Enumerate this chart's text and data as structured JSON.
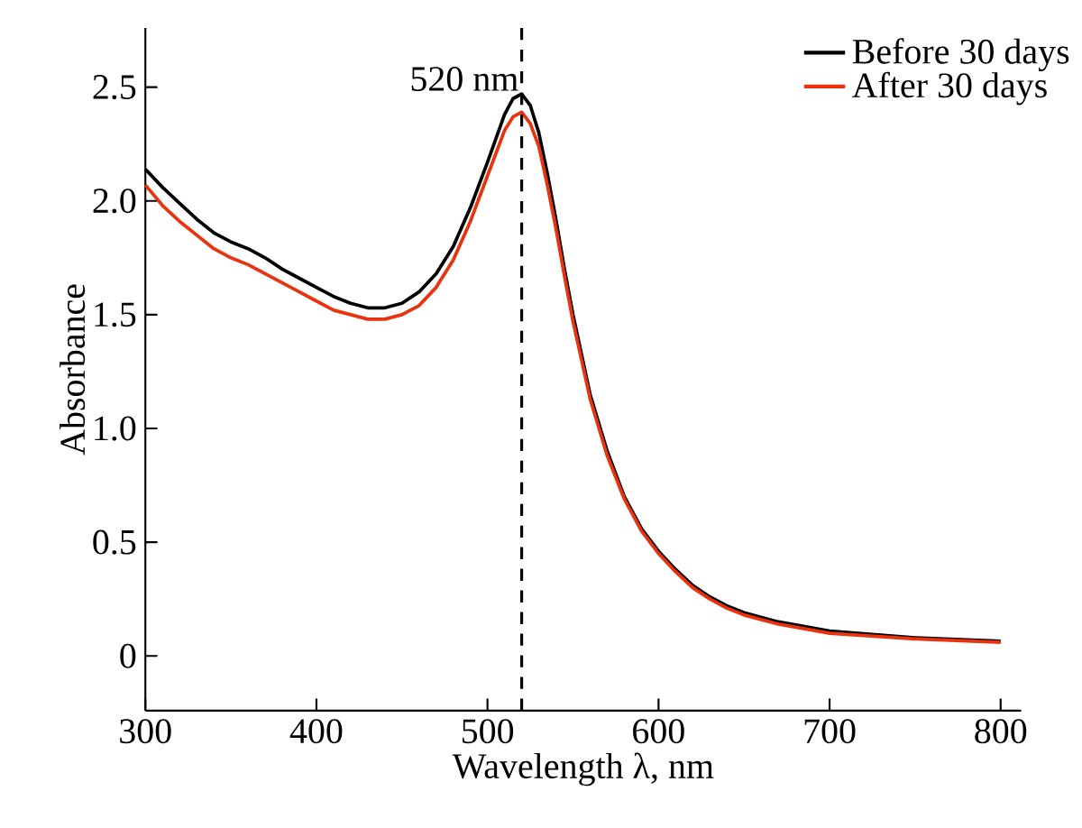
{
  "chart_data": {
    "type": "line",
    "xlabel": "Wavelength λ, nm",
    "ylabel": "Absorbance",
    "x": [
      300,
      310,
      320,
      330,
      340,
      350,
      360,
      370,
      380,
      390,
      400,
      410,
      420,
      430,
      440,
      450,
      460,
      470,
      480,
      490,
      500,
      510,
      515,
      520,
      525,
      530,
      535,
      540,
      545,
      550,
      560,
      570,
      580,
      590,
      600,
      610,
      620,
      630,
      640,
      650,
      670,
      700,
      750,
      800
    ],
    "series": [
      {
        "name": "Before 30 days",
        "color": "#000000",
        "values": [
          2.14,
          2.06,
          1.99,
          1.92,
          1.86,
          1.82,
          1.79,
          1.75,
          1.7,
          1.66,
          1.62,
          1.58,
          1.55,
          1.53,
          1.53,
          1.55,
          1.6,
          1.68,
          1.8,
          1.97,
          2.17,
          2.38,
          2.45,
          2.47,
          2.42,
          2.3,
          2.12,
          1.92,
          1.7,
          1.5,
          1.15,
          0.9,
          0.7,
          0.56,
          0.46,
          0.38,
          0.31,
          0.26,
          0.22,
          0.19,
          0.15,
          0.11,
          0.08,
          0.065
        ]
      },
      {
        "name": "After 30 days",
        "color": "#e8330e",
        "values": [
          2.07,
          1.98,
          1.91,
          1.85,
          1.79,
          1.75,
          1.72,
          1.68,
          1.64,
          1.6,
          1.56,
          1.52,
          1.5,
          1.48,
          1.48,
          1.5,
          1.54,
          1.62,
          1.74,
          1.91,
          2.11,
          2.31,
          2.37,
          2.39,
          2.34,
          2.24,
          2.07,
          1.88,
          1.67,
          1.47,
          1.13,
          0.88,
          0.69,
          0.55,
          0.45,
          0.37,
          0.3,
          0.25,
          0.21,
          0.18,
          0.14,
          0.1,
          0.075,
          0.06
        ]
      }
    ],
    "xlim": [
      300,
      812
    ],
    "ylim": [
      -0.24,
      2.76
    ],
    "xticks": [
      300,
      400,
      500,
      600,
      700,
      800
    ],
    "yticks": [
      0,
      0.5,
      {
        "value": 1.0,
        "label": "1.0"
      },
      1.5,
      {
        "value": 2.0,
        "label": "2.0"
      },
      2.5
    ],
    "ref_lines": [
      {
        "axis": "x",
        "value": 520,
        "label": "520 nm",
        "line_style": "dashed",
        "color": "#000000"
      }
    ],
    "legend": "top right",
    "line_style": "solid",
    "marker": "none",
    "grid": false
  }
}
